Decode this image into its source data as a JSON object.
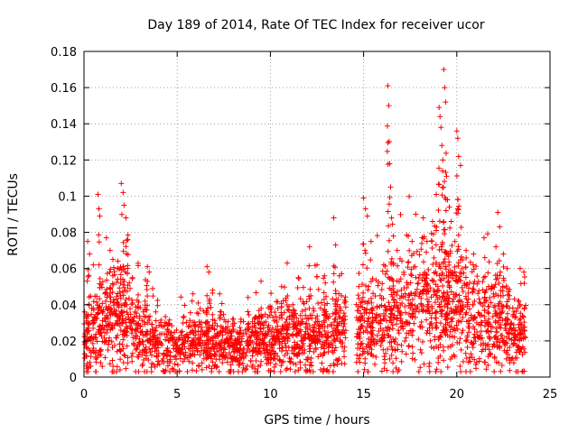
{
  "chart_data": {
    "type": "scatter",
    "title": "Day 189 of 2014, Rate Of TEC Index for receiver ucor",
    "xlabel": "GPS time / hours",
    "ylabel": "ROTI / TECUs",
    "xlim": [
      0,
      25
    ],
    "ylim": [
      0,
      0.18
    ],
    "xticks": [
      0,
      5,
      10,
      15,
      20,
      25
    ],
    "yticks": [
      0,
      0.02,
      0.04,
      0.06,
      0.08,
      0.1,
      0.12,
      0.14,
      0.16,
      0.18
    ],
    "grid": true,
    "marker": "+",
    "color": "#ff0000",
    "gap_hours": [
      14.05,
      14.6
    ],
    "series": [
      {
        "name": "ROTI",
        "baseline": [
          [
            0.0,
            0.018
          ],
          [
            0.5,
            0.022
          ],
          [
            1.0,
            0.026
          ],
          [
            1.5,
            0.028
          ],
          [
            2.0,
            0.03
          ],
          [
            2.5,
            0.026
          ],
          [
            3.0,
            0.022
          ],
          [
            3.5,
            0.018
          ],
          [
            4.0,
            0.016
          ],
          [
            4.5,
            0.015
          ],
          [
            5.0,
            0.015
          ],
          [
            5.5,
            0.016
          ],
          [
            6.0,
            0.017
          ],
          [
            6.5,
            0.019
          ],
          [
            7.0,
            0.018
          ],
          [
            7.5,
            0.016
          ],
          [
            8.0,
            0.015
          ],
          [
            8.5,
            0.015
          ],
          [
            9.0,
            0.016
          ],
          [
            9.5,
            0.017
          ],
          [
            10.0,
            0.018
          ],
          [
            10.5,
            0.019
          ],
          [
            11.0,
            0.02
          ],
          [
            11.5,
            0.02
          ],
          [
            12.0,
            0.021
          ],
          [
            12.5,
            0.021
          ],
          [
            13.0,
            0.022
          ],
          [
            13.5,
            0.022
          ],
          [
            14.0,
            0.022
          ],
          [
            14.7,
            0.022
          ],
          [
            15.0,
            0.024
          ],
          [
            15.5,
            0.026
          ],
          [
            16.0,
            0.028
          ],
          [
            16.5,
            0.03
          ],
          [
            17.0,
            0.032
          ],
          [
            17.5,
            0.034
          ],
          [
            18.0,
            0.036
          ],
          [
            18.5,
            0.036
          ],
          [
            19.0,
            0.036
          ],
          [
            19.5,
            0.034
          ],
          [
            20.0,
            0.032
          ],
          [
            20.5,
            0.03
          ],
          [
            21.0,
            0.028
          ],
          [
            21.5,
            0.027
          ],
          [
            22.0,
            0.026
          ],
          [
            22.5,
            0.024
          ],
          [
            23.0,
            0.022
          ],
          [
            23.5,
            0.02
          ],
          [
            23.7,
            0.019
          ]
        ],
        "peaks": [
          [
            0.2,
            0.075
          ],
          [
            0.3,
            0.068
          ],
          [
            0.5,
            0.062
          ],
          [
            0.75,
            0.101
          ],
          [
            0.8,
            0.093
          ],
          [
            0.85,
            0.089
          ],
          [
            1.2,
            0.077
          ],
          [
            1.4,
            0.07
          ],
          [
            1.55,
            0.065
          ],
          [
            1.8,
            0.06
          ],
          [
            2.0,
            0.107
          ],
          [
            2.1,
            0.102
          ],
          [
            2.15,
            0.095
          ],
          [
            2.25,
            0.088
          ],
          [
            2.35,
            0.076
          ],
          [
            2.6,
            0.055
          ],
          [
            3.4,
            0.061
          ],
          [
            3.5,
            0.058
          ],
          [
            5.8,
            0.042
          ],
          [
            6.6,
            0.061
          ],
          [
            6.7,
            0.058
          ],
          [
            6.9,
            0.048
          ],
          [
            8.8,
            0.044
          ],
          [
            9.5,
            0.053
          ],
          [
            10.6,
            0.05
          ],
          [
            10.9,
            0.063
          ],
          [
            11.5,
            0.055
          ],
          [
            12.1,
            0.072
          ],
          [
            12.5,
            0.062
          ],
          [
            12.9,
            0.056
          ],
          [
            13.4,
            0.088
          ],
          [
            13.5,
            0.073
          ],
          [
            13.7,
            0.056
          ],
          [
            15.0,
            0.099
          ],
          [
            15.1,
            0.093
          ],
          [
            15.2,
            0.089
          ],
          [
            15.4,
            0.075
          ],
          [
            16.3,
            0.161
          ],
          [
            16.35,
            0.15
          ],
          [
            16.4,
            0.118
          ],
          [
            16.45,
            0.105
          ],
          [
            16.5,
            0.088
          ],
          [
            16.6,
            0.078
          ],
          [
            16.8,
            0.07
          ],
          [
            17.4,
            0.078
          ],
          [
            17.6,
            0.075
          ],
          [
            17.8,
            0.09
          ],
          [
            18.2,
            0.088
          ],
          [
            18.4,
            0.075
          ],
          [
            18.7,
            0.086
          ],
          [
            18.9,
            0.101
          ],
          [
            19.05,
            0.149
          ],
          [
            19.1,
            0.144
          ],
          [
            19.15,
            0.138
          ],
          [
            19.2,
            0.128
          ],
          [
            19.25,
            0.12
          ],
          [
            19.3,
            0.17
          ],
          [
            19.35,
            0.16
          ],
          [
            19.4,
            0.152
          ],
          [
            19.45,
            0.111
          ],
          [
            19.5,
            0.098
          ],
          [
            19.6,
            0.094
          ],
          [
            19.7,
            0.086
          ],
          [
            19.9,
            0.075
          ],
          [
            20.0,
            0.136
          ],
          [
            20.05,
            0.132
          ],
          [
            20.1,
            0.122
          ],
          [
            20.2,
            0.117
          ],
          [
            20.5,
            0.07
          ],
          [
            20.9,
            0.068
          ],
          [
            21.5,
            0.066
          ],
          [
            22.1,
            0.072
          ],
          [
            22.2,
            0.091
          ],
          [
            22.3,
            0.083
          ],
          [
            22.5,
            0.068
          ],
          [
            22.7,
            0.06
          ],
          [
            23.4,
            0.06
          ],
          [
            23.6,
            0.058
          ]
        ]
      }
    ]
  }
}
